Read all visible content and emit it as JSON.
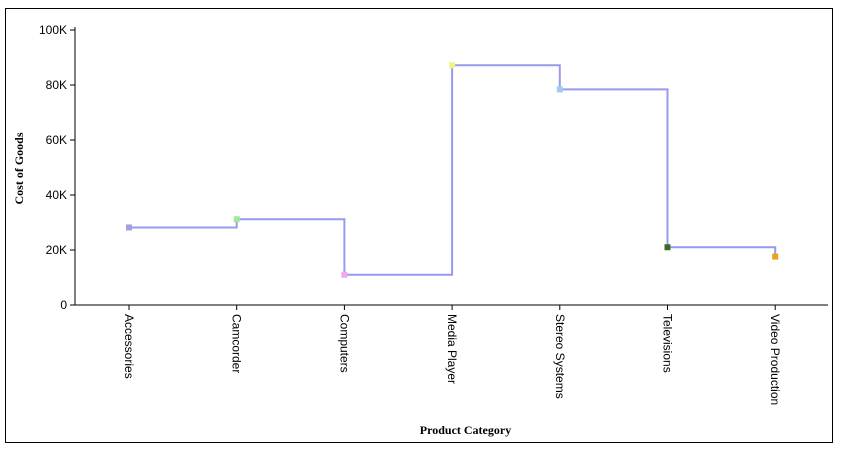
{
  "chart_data": {
    "type": "line",
    "subtype": "step",
    "title": "",
    "xlabel": "Product Category",
    "ylabel": "Cost of Goods",
    "categories": [
      "Accessories",
      "Camcorder",
      "Computers",
      "Media Player",
      "Stereo Systems",
      "Televisions",
      "Video Production"
    ],
    "values": [
      28200,
      31200,
      11000,
      87200,
      78400,
      21000,
      17600
    ],
    "marker_colors": [
      "#a59ee0",
      "#a6e89b",
      "#f0a6f0",
      "#f2f28a",
      "#9fcbf2",
      "#3a6b2a",
      "#e8a21a"
    ],
    "line_color": "#9999ee",
    "ylim": [
      0,
      100000
    ],
    "y_ticks": [
      0,
      20000,
      40000,
      60000,
      80000,
      100000
    ],
    "y_tick_labels": [
      "0",
      "20K",
      "40K",
      "60K",
      "80K",
      "100K"
    ],
    "grid": false,
    "legend": "none"
  }
}
